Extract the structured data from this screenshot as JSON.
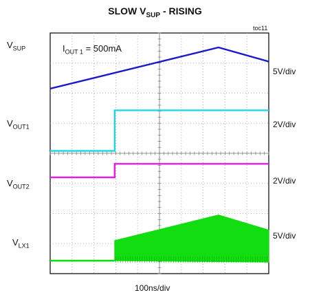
{
  "chart_data": {
    "type": "line",
    "title": {
      "main": "SLOW V",
      "sub": "SUP",
      "rest": " - RISING"
    },
    "figure_id": "toc11",
    "annotation": {
      "main": "I",
      "sub": "OUT 1",
      "rest": " = 500mA"
    },
    "x_label": "100ns/div",
    "grid": true,
    "divisions": {
      "x": 10,
      "y": 8
    },
    "channels": [
      {
        "label": "V",
        "sub": "SUP",
        "scale": "5V/div",
        "color": "#1a1acc",
        "trace": "ramp-up-then-down"
      },
      {
        "label": "V",
        "sub": "OUT1",
        "scale": "2V/div",
        "color": "#1ed8e8",
        "trace": "low-then-step-high"
      },
      {
        "label": "V",
        "sub": "OUT2",
        "scale": "2V/div",
        "color": "#e21ee2",
        "trace": "low-then-step-high"
      },
      {
        "label": "V",
        "sub": "LX1",
        "scale": "5V/div",
        "color": "#11dd11",
        "trace": "low-then-switching-envelope"
      }
    ]
  }
}
